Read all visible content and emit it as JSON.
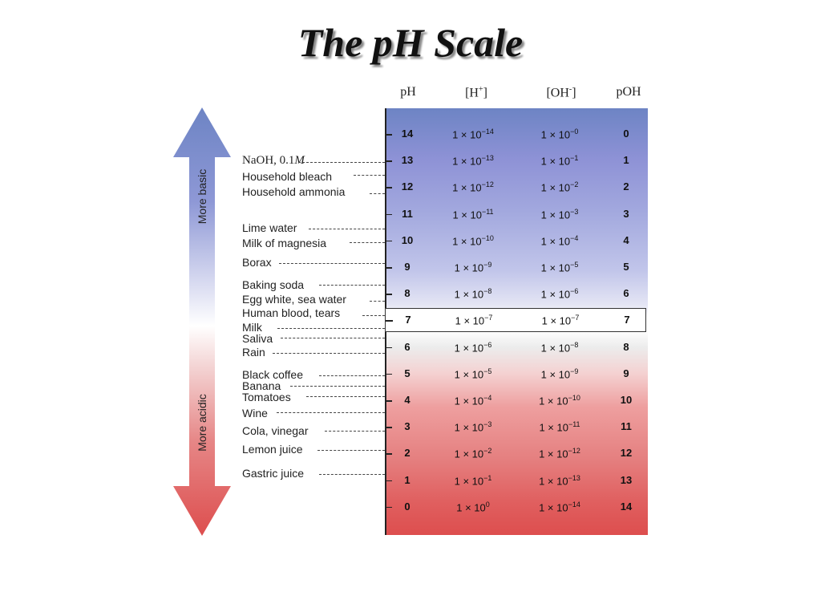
{
  "title": "The pH Scale",
  "headers": {
    "ph": "pH",
    "h_base": "[H",
    "h_sup": "+",
    "h_end": "]",
    "oh_base": "[OH",
    "oh_sup": "-",
    "oh_end": "]",
    "poh": "pOH"
  },
  "arrow": {
    "up_label": "More basic",
    "down_label": "More acidic"
  },
  "rows": [
    {
      "ph": "14",
      "h_base": "1 × 10",
      "h_exp": "−14",
      "oh_base": "1 × 10",
      "oh_exp": "−0",
      "poh": "0"
    },
    {
      "ph": "13",
      "h_base": "1 × 10",
      "h_exp": "−13",
      "oh_base": "1 × 10",
      "oh_exp": "−1",
      "poh": "1"
    },
    {
      "ph": "12",
      "h_base": "1 × 10",
      "h_exp": "−12",
      "oh_base": "1 × 10",
      "oh_exp": "−2",
      "poh": "2"
    },
    {
      "ph": "11",
      "h_base": "1 × 10",
      "h_exp": "−11",
      "oh_base": "1 × 10",
      "oh_exp": "−3",
      "poh": "3"
    },
    {
      "ph": "10",
      "h_base": "1 × 10",
      "h_exp": "−10",
      "oh_base": "1 × 10",
      "oh_exp": "−4",
      "poh": "4"
    },
    {
      "ph": "9",
      "h_base": "1 × 10",
      "h_exp": "−9",
      "oh_base": "1 × 10",
      "oh_exp": "−5",
      "poh": "5"
    },
    {
      "ph": "8",
      "h_base": "1 × 10",
      "h_exp": "−8",
      "oh_base": "1 × 10",
      "oh_exp": "−6",
      "poh": "6"
    },
    {
      "ph": "7",
      "h_base": "1 × 10",
      "h_exp": "−7",
      "oh_base": "1 × 10",
      "oh_exp": "−7",
      "poh": "7"
    },
    {
      "ph": "6",
      "h_base": "1 × 10",
      "h_exp": "−6",
      "oh_base": "1 × 10",
      "oh_exp": "−8",
      "poh": "8"
    },
    {
      "ph": "5",
      "h_base": "1 × 10",
      "h_exp": "−5",
      "oh_base": "1 × 10",
      "oh_exp": "−9",
      "poh": "9"
    },
    {
      "ph": "4",
      "h_base": "1 × 10",
      "h_exp": "−4",
      "oh_base": "1 × 10",
      "oh_exp": "−10",
      "poh": "10"
    },
    {
      "ph": "3",
      "h_base": "1 × 10",
      "h_exp": "−3",
      "oh_base": "1 × 10",
      "oh_exp": "−11",
      "poh": "11"
    },
    {
      "ph": "2",
      "h_base": "1 × 10",
      "h_exp": "−2",
      "oh_base": "1 × 10",
      "oh_exp": "−12",
      "poh": "12"
    },
    {
      "ph": "1",
      "h_base": "1 × 10",
      "h_exp": "−1",
      "oh_base": "1 × 10",
      "oh_exp": "−13",
      "poh": "13"
    },
    {
      "ph": "0",
      "h_base": "1 × 10",
      "h_exp": "0",
      "oh_base": "1 × 10",
      "oh_exp": "−14",
      "poh": "14"
    }
  ],
  "substances": {
    "naoh_text": "NaOH, 0.1",
    "naoh_unit": "M",
    "bleach": "Household bleach",
    "ammonia": "Household ammonia",
    "lime_water": "Lime water",
    "magnesia": "Milk of magnesia",
    "borax": "Borax",
    "baking_soda": "Baking soda",
    "egg_white": "Egg white, sea water",
    "blood": "Human blood, tears",
    "milk": "Milk",
    "saliva": "Saliva",
    "rain": "Rain",
    "coffee": "Black coffee",
    "banana": "Banana",
    "tomatoes": "Tomatoes",
    "wine": "Wine",
    "cola": "Cola, vinegar",
    "lemon": "Lemon juice",
    "gastric": "Gastric juice"
  },
  "colors": {
    "basic": "#6d84c4",
    "acidic": "#dd4e4e",
    "neutral": "#ffffff"
  }
}
